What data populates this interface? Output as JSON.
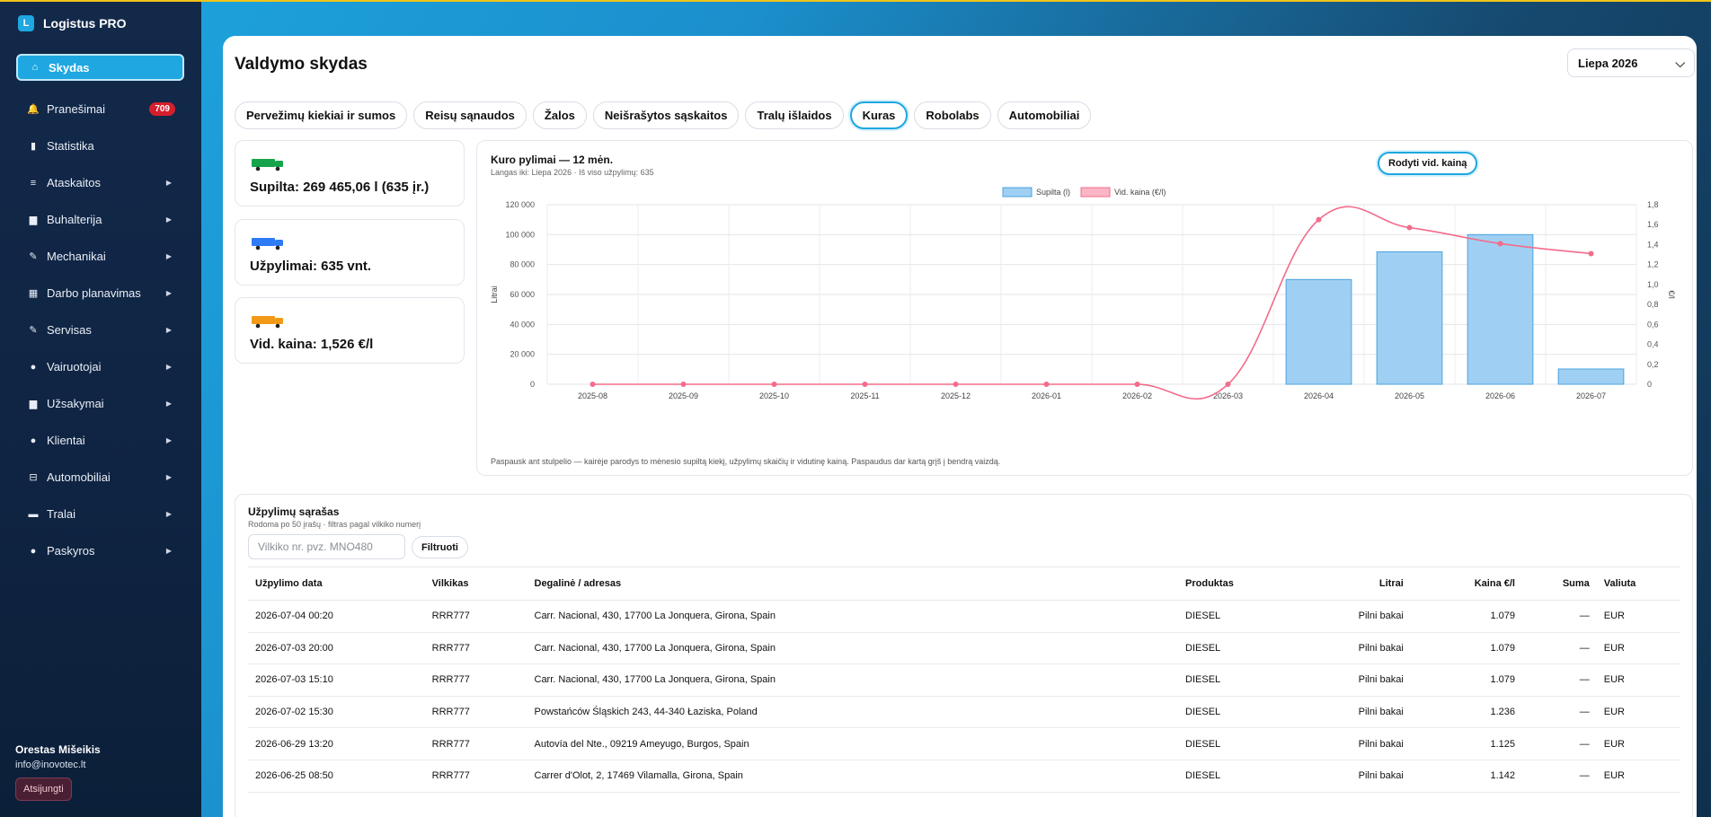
{
  "app": {
    "name": "Logistus PRO",
    "logo_letter": "L"
  },
  "sidebar": {
    "items": [
      {
        "label": "Skydas",
        "icon": "home-icon",
        "glyph": "⌂",
        "active": true
      },
      {
        "label": "Pranešimai",
        "icon": "bell-icon",
        "glyph": "🔔",
        "badge": "709"
      },
      {
        "label": "Statistika",
        "icon": "chart-icon",
        "glyph": "▮"
      },
      {
        "label": "Ataskaitos",
        "icon": "list-icon",
        "glyph": "≡",
        "arrow": true
      },
      {
        "label": "Buhalterija",
        "icon": "book-icon",
        "glyph": "▆",
        "arrow": true
      },
      {
        "label": "Mechanikai",
        "icon": "wrench-icon",
        "glyph": "✎",
        "arrow": true
      },
      {
        "label": "Darbo planavimas",
        "icon": "calendar-icon",
        "glyph": "▦",
        "arrow": true
      },
      {
        "label": "Servisas",
        "icon": "tool-icon",
        "glyph": "✎",
        "arrow": true
      },
      {
        "label": "Vairuotojai",
        "icon": "user-icon",
        "glyph": "●",
        "arrow": true
      },
      {
        "label": "Užsakymai",
        "icon": "clipboard-icon",
        "glyph": "▆",
        "arrow": true
      },
      {
        "label": "Klientai",
        "icon": "person-icon",
        "glyph": "●",
        "arrow": true
      },
      {
        "label": "Automobiliai",
        "icon": "car-icon",
        "glyph": "⊟",
        "arrow": true
      },
      {
        "label": "Tralai",
        "icon": "truck-icon",
        "glyph": "▬",
        "arrow": true
      },
      {
        "label": "Paskyros",
        "icon": "account-icon",
        "glyph": "●",
        "arrow": true
      }
    ],
    "user_name": "Orestas Mišeikis",
    "user_email": "info@inovotec.lt",
    "logout_label": "Atsijungti"
  },
  "header": {
    "title": "Valdymo skydas",
    "month": "Liepa 2026"
  },
  "tabs": [
    "Pervežimų kiekiai ir sumos",
    "Reisų sąnaudos",
    "Žalos",
    "Neišrašytos sąskaitos",
    "Tralų išlaidos",
    "Kuras",
    "Robolabs",
    "Automobiliai"
  ],
  "active_tab": "Kuras",
  "kpis": [
    {
      "text": "Supilta: 269 465,06 l (635 įr.)",
      "color": "#16a34a"
    },
    {
      "text": "Užpylimai: 635 vnt.",
      "color": "#2f7bf5"
    },
    {
      "text": "Vid. kaina: 1,526 €/l",
      "color": "#f29a17"
    }
  ],
  "chart": {
    "title": "Kuro pylimai — 12 mėn.",
    "subtitle": "Langas iki: Liepa 2026 · Iš viso užpylimų: 635",
    "avg_button": "Rodyti vid. kainą",
    "hint": "Paspausk ant stulpelio — kairėje parodys to mėnesio supiltą kiekį, užpylimų skaičių ir vidutinę kainą. Paspaudus dar kartą grįš į bendrą vaizdą."
  },
  "chart_data": {
    "type": "bar",
    "categories": [
      "2025-08",
      "2025-09",
      "2025-10",
      "2025-11",
      "2025-12",
      "2026-01",
      "2026-02",
      "2026-03",
      "2026-04",
      "2026-05",
      "2026-06",
      "2026-07"
    ],
    "series": [
      {
        "name": "Supilta (l)",
        "type": "bar",
        "axis": "left",
        "color": "#9fd0f3",
        "values": [
          0,
          0,
          0,
          0,
          0,
          0,
          0,
          0,
          70000,
          88500,
          100000,
          10200
        ]
      },
      {
        "name": "Vid. kaina (€/l)",
        "type": "line",
        "axis": "right",
        "color": "#f36c8a",
        "values": [
          0,
          0,
          0,
          0,
          0,
          0,
          0,
          0,
          1.65,
          1.57,
          1.41,
          1.31
        ]
      }
    ],
    "ylabel": "Litrai",
    "y2label": "€/l",
    "ylim": [
      0,
      120000
    ],
    "y2lim": [
      0,
      1.8
    ],
    "yticks": [
      "0",
      "20 000",
      "40 000",
      "60 000",
      "80 000",
      "100 000",
      "120 000"
    ],
    "y2ticks": [
      "0",
      "0,2",
      "0,4",
      "0,6",
      "0,8",
      "1,0",
      "1,2",
      "1,4",
      "1,6",
      "1,8"
    ],
    "legend": "top-center",
    "grid": true
  },
  "fills": {
    "title": "Užpylimų sąrašas",
    "subtitle": "Rodoma po 50 įrašų · filtras pagal vilkiko numerį",
    "search_placeholder": "Vilkiko nr. pvz. MNO480",
    "filter_label": "Filtruoti",
    "columns": [
      "Užpylimo data",
      "Vilkikas",
      "Degalinė / adresas",
      "Produktas",
      "Litrai",
      "Kaina €/l",
      "Suma",
      "Valiuta"
    ],
    "rows": [
      [
        "2026-07-04 00:20",
        "RRR777",
        "Carr. Nacional, 430, 17700 La Jonquera, Girona, Spain",
        "DIESEL",
        "Pilni bakai",
        "1.079",
        "—",
        "EUR"
      ],
      [
        "2026-07-03 20:00",
        "RRR777",
        "Carr. Nacional, 430, 17700 La Jonquera, Girona, Spain",
        "DIESEL",
        "Pilni bakai",
        "1.079",
        "—",
        "EUR"
      ],
      [
        "2026-07-03 15:10",
        "RRR777",
        "Carr. Nacional, 430, 17700 La Jonquera, Girona, Spain",
        "DIESEL",
        "Pilni bakai",
        "1.079",
        "—",
        "EUR"
      ],
      [
        "2026-07-02 15:30",
        "RRR777",
        "Powstańców Śląskich 243, 44-340 Łaziska, Poland",
        "DIESEL",
        "Pilni bakai",
        "1.236",
        "—",
        "EUR"
      ],
      [
        "2026-06-29 13:20",
        "RRR777",
        "Autovía del Nte., 09219 Ameyugo, Burgos, Spain",
        "DIESEL",
        "Pilni bakai",
        "1.125",
        "—",
        "EUR"
      ],
      [
        "2026-06-25 08:50",
        "RRR777",
        "Carrer d'Olot, 2, 17469 Vilamalla, Girona, Spain",
        "DIESEL",
        "Pilni bakai",
        "1.142",
        "—",
        "EUR"
      ]
    ]
  }
}
